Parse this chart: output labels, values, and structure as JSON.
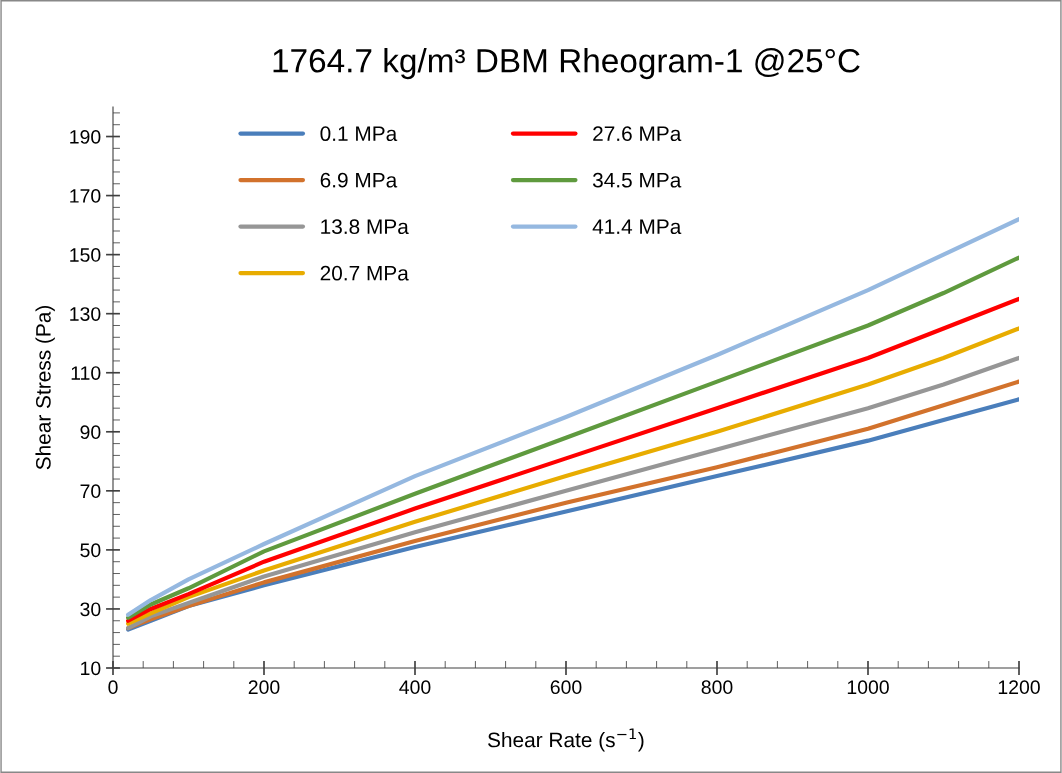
{
  "chart_data": {
    "type": "line",
    "title": "1764.7 kg/m³ DBM Rheogram-1 @25°C",
    "xlabel": "Shear Rate (s$^{−1}$)",
    "ylabel": "Shear Stress (Pa)",
    "x": [
      20,
      50,
      100,
      200,
      400,
      600,
      800,
      1000,
      1100,
      1200
    ],
    "series": [
      {
        "name": "0.1 MPa",
        "color": "#4a7ebb",
        "values": [
          23,
          26,
          31,
          38,
          51,
          63,
          75,
          87,
          94,
          101
        ]
      },
      {
        "name": "6.9 MPa",
        "color": "#d2722c",
        "values": [
          23.5,
          26.5,
          31,
          39,
          53,
          66,
          78,
          91,
          99,
          107
        ]
      },
      {
        "name": "13.8 MPa",
        "color": "#969696",
        "values": [
          23.5,
          27.5,
          32,
          41,
          56,
          70,
          84,
          98,
          106,
          115
        ]
      },
      {
        "name": "20.7 MPa",
        "color": "#e8ac00",
        "values": [
          25,
          28.5,
          34,
          43,
          59.5,
          75,
          90,
          106,
          115,
          125
        ]
      },
      {
        "name": "27.6 MPa",
        "color": "#ff0000",
        "values": [
          26,
          30,
          35,
          46,
          64,
          81,
          98,
          115,
          125,
          135
        ]
      },
      {
        "name": "34.5 MPa",
        "color": "#5f9a3e",
        "values": [
          27,
          31.5,
          37,
          49.5,
          69,
          88,
          107,
          126,
          137,
          149
        ]
      },
      {
        "name": "41.4 MPa",
        "color": "#95b8e0",
        "values": [
          28,
          33,
          40,
          52,
          75,
          95,
          116,
          138,
          150,
          162
        ]
      }
    ],
    "xlim": [
      0,
      1200
    ],
    "xticks": [
      0,
      200,
      400,
      600,
      800,
      1000,
      1200
    ],
    "ylim": [
      10,
      200
    ],
    "yticks": [
      10,
      30,
      50,
      70,
      90,
      110,
      130,
      150,
      170,
      190
    ],
    "grid": false,
    "legend": "top left",
    "marker": "none",
    "line_style": "solid"
  }
}
